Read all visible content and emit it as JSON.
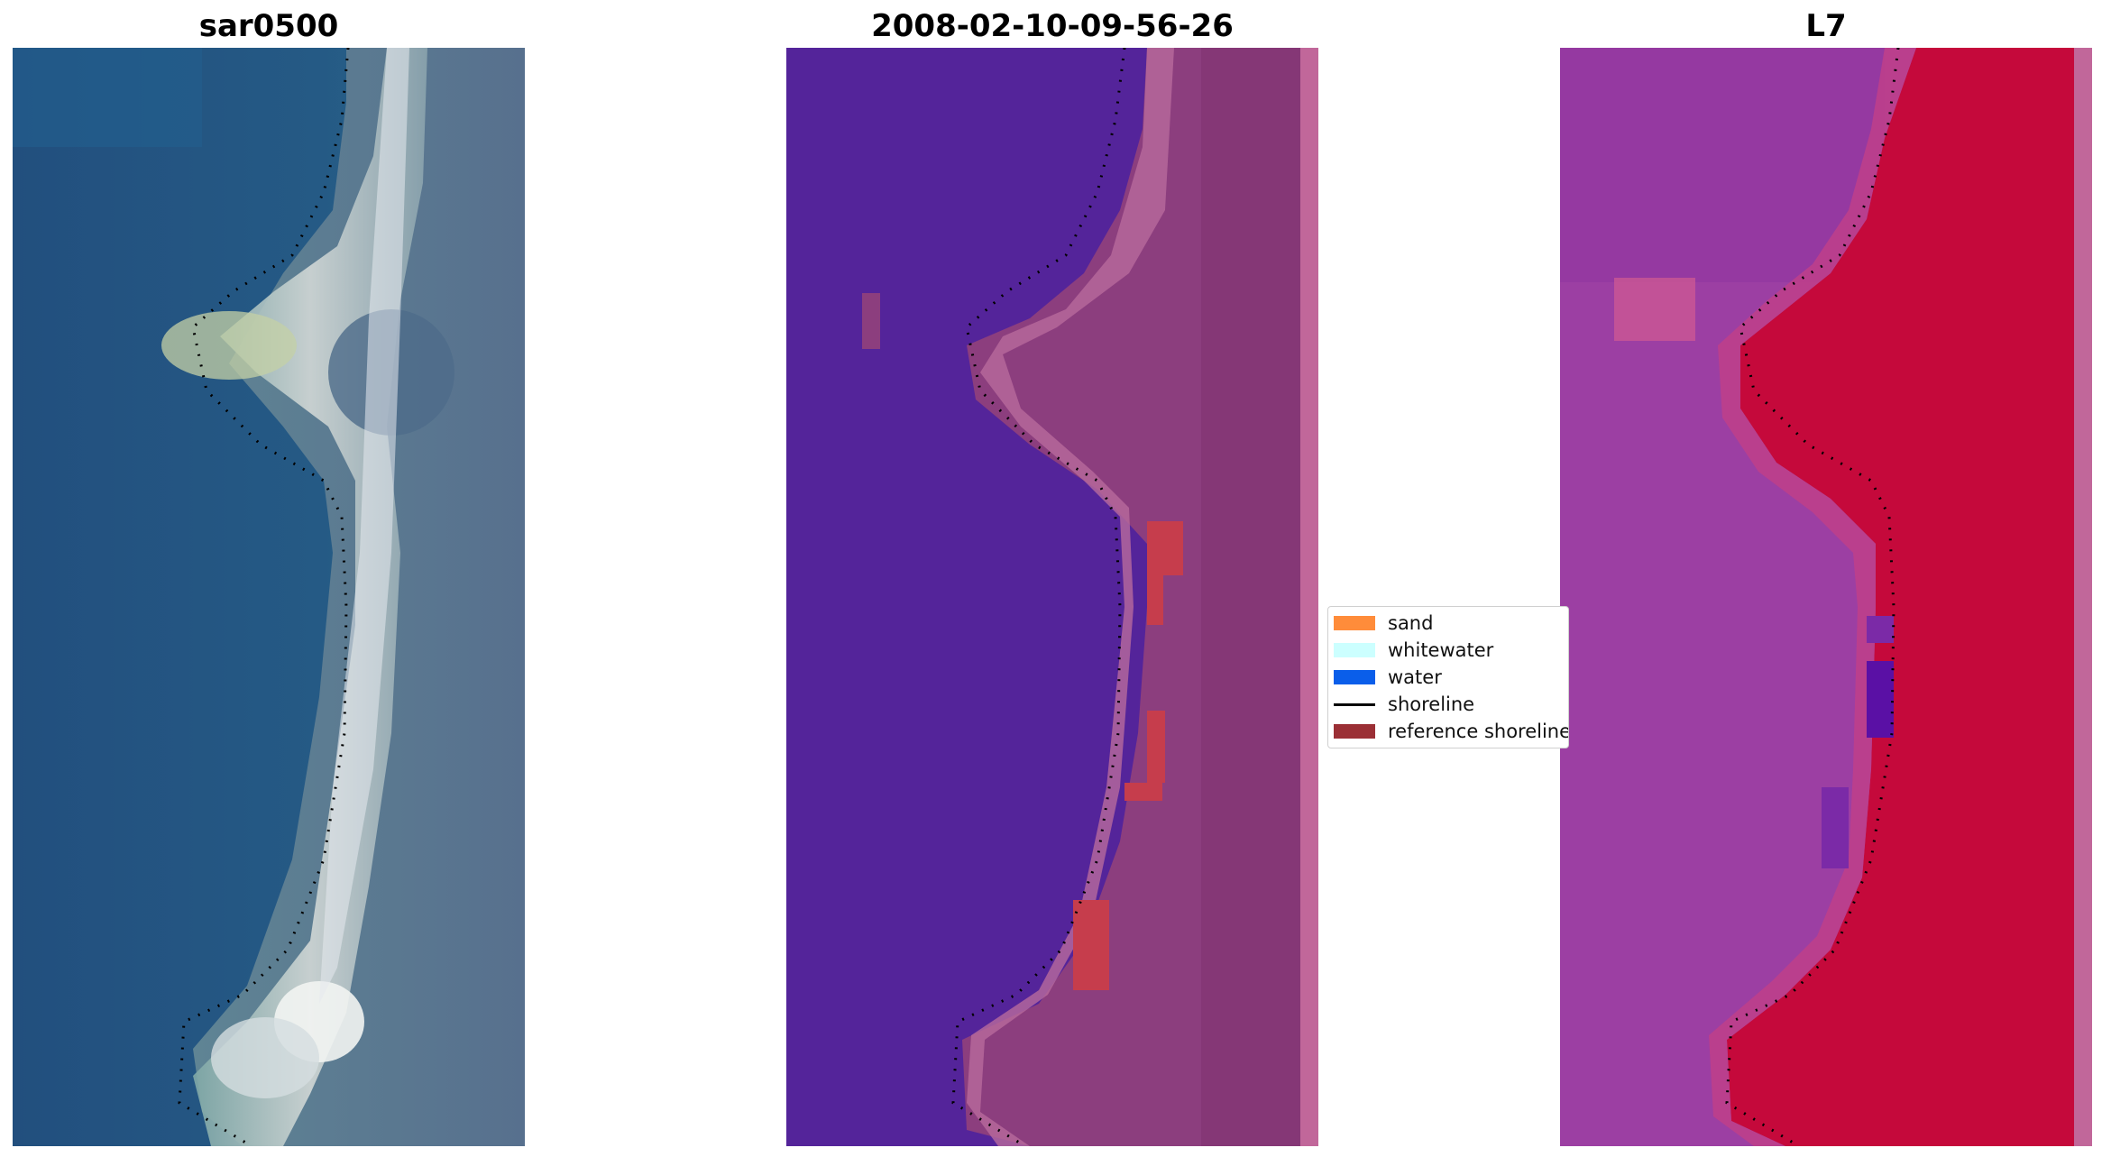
{
  "panels": [
    {
      "title": "sar0500",
      "image": "true-color satellite image (RGB)"
    },
    {
      "title": "2008-02-10-09-56-26",
      "image": "image classification overlay"
    },
    {
      "title": "L7",
      "image": "MNDWI index image"
    }
  ],
  "legend": {
    "items": [
      {
        "label": "sand",
        "color": "#ff8c3a"
      },
      {
        "label": "whitewater",
        "color": "#ccffff"
      },
      {
        "label": "water",
        "color": "#0a5eea"
      },
      {
        "label": "shoreline",
        "color": "#000000"
      },
      {
        "label": "reference shoreline",
        "color": "#9b2f35"
      }
    ]
  },
  "colors": {
    "sea_blue": "#255a85",
    "class_water_purple": "#54249a",
    "class_land_mauve": "#8c3e7e",
    "mndwi_water_magenta": "#9c3fa3",
    "mndwi_land_red": "#c5093b"
  }
}
